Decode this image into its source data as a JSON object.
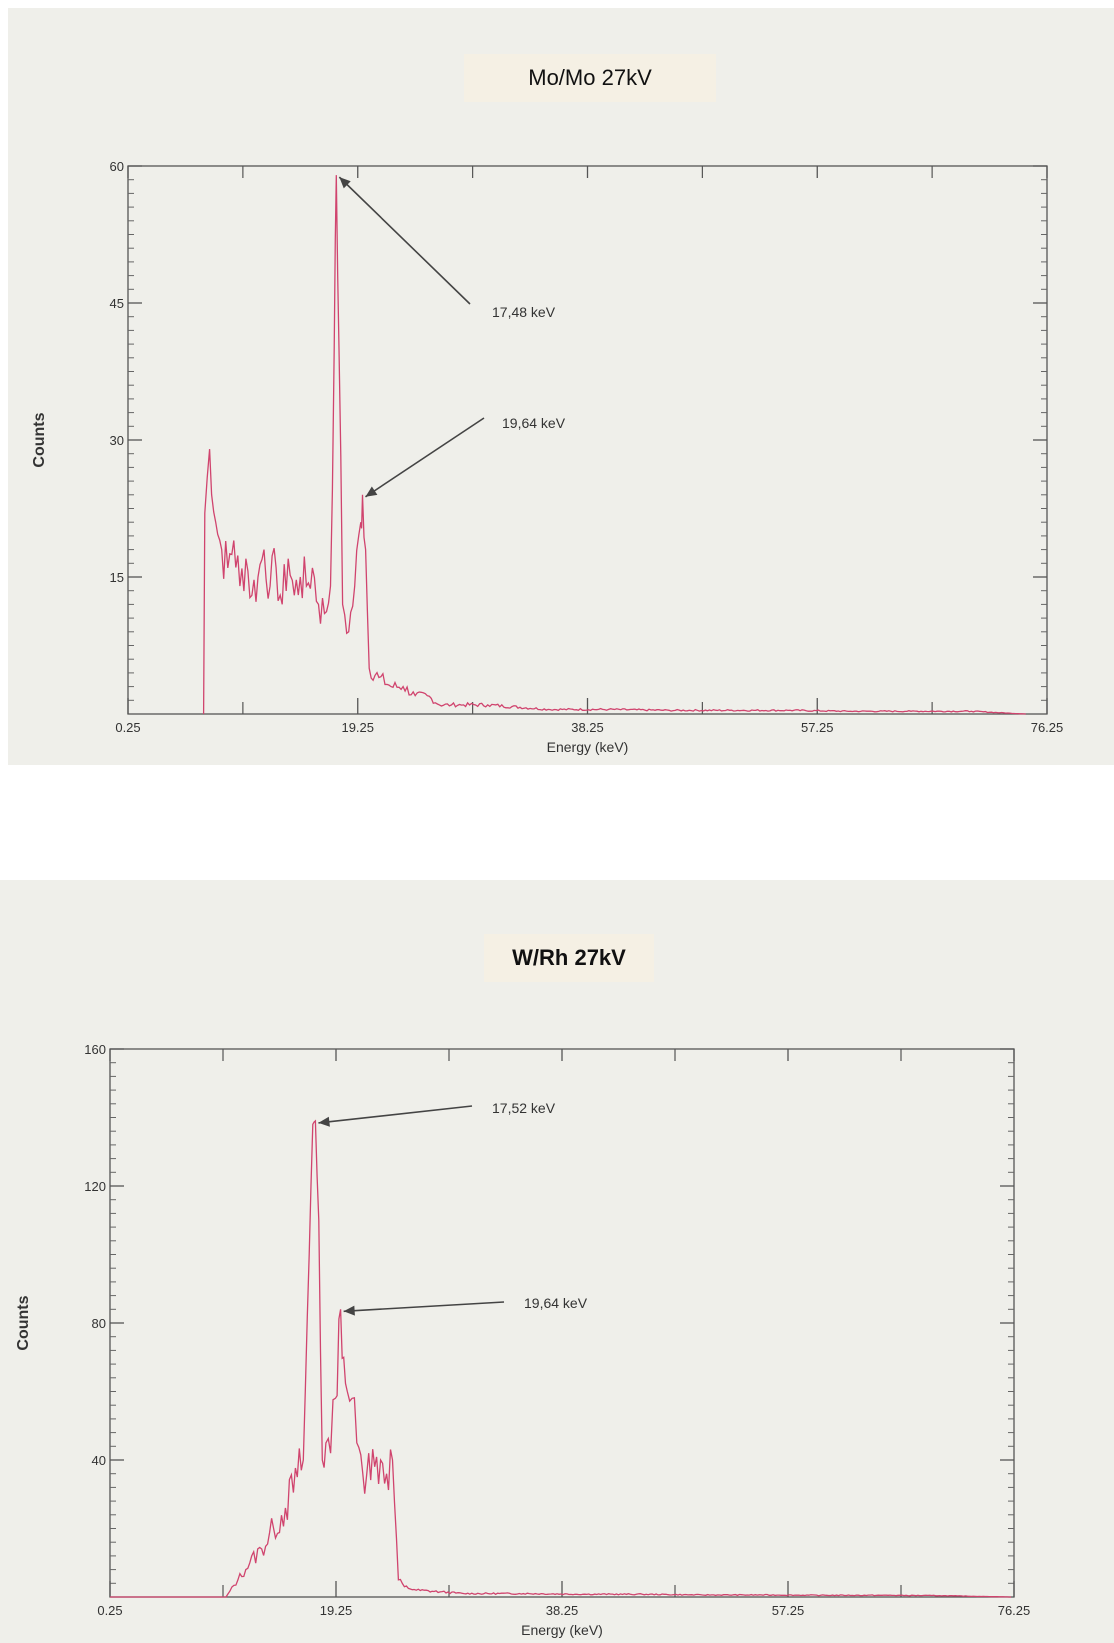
{
  "chart_data": [
    {
      "type": "line",
      "title": "Mo/Mo   27kV",
      "xlabel": "Energy (keV)",
      "ylabel": "Counts",
      "xlim": [
        0.25,
        76.25
      ],
      "ylim": [
        0,
        60
      ],
      "xticks": [
        0.25,
        19.25,
        38.25,
        57.25,
        76.25
      ],
      "xtick_labels": [
        "0.25",
        "19.25",
        "38.25",
        "57.25",
        "76.25"
      ],
      "yticks": [
        15,
        30,
        45,
        60
      ],
      "ytick_labels": [
        "15",
        "30",
        "45",
        "60"
      ],
      "grid": false,
      "line_color": "#d0446e",
      "series": [
        {
          "x": [
            6.5,
            6.6,
            7.0,
            7.5,
            8.0,
            8.5,
            9.0,
            9.5,
            10.0,
            10.5,
            11.0,
            11.5,
            12.0,
            12.5,
            13.0,
            13.5,
            14.0,
            14.5,
            15.0,
            15.5,
            16.0,
            16.5,
            17.0,
            17.3,
            17.48,
            17.7,
            18.0,
            18.5,
            19.0,
            19.5,
            19.64,
            19.9,
            20.2,
            21.0,
            22.0,
            23.0,
            24.0,
            25.0,
            26.0,
            27.0,
            28.0,
            30.0,
            35.0,
            40.0,
            45.0,
            50.0,
            55.0,
            60.0,
            65.0,
            70.0,
            74.5
          ],
          "y": [
            0,
            22,
            29,
            21,
            18,
            16,
            19,
            14,
            17,
            13,
            15,
            18,
            14,
            16,
            12,
            17,
            13,
            15,
            14,
            16,
            12,
            11,
            14,
            40,
            59,
            40,
            12,
            9,
            14,
            21,
            24,
            18,
            5,
            4,
            3,
            3,
            2,
            2,
            1,
            1,
            1,
            1,
            0.5,
            0.5,
            0.4,
            0.4,
            0.4,
            0.3,
            0.3,
            0.3,
            0
          ]
        }
      ],
      "annotations": [
        {
          "text": "17,48 keV",
          "x": 17.48,
          "y": 59
        },
        {
          "text": "19,64 keV",
          "x": 19.64,
          "y": 24
        }
      ]
    },
    {
      "type": "line",
      "title": "W/Rh 27kV",
      "xlabel": "Energy (keV)",
      "ylabel": "Counts",
      "xlim": [
        0.25,
        76.25
      ],
      "ylim": [
        0,
        160
      ],
      "xticks": [
        0.25,
        19.25,
        38.25,
        57.25,
        76.25
      ],
      "xtick_labels": [
        "0.25",
        "19.25",
        "38.25",
        "57.25",
        "76.25"
      ],
      "yticks": [
        40,
        80,
        120,
        160
      ],
      "ytick_labels": [
        "40",
        "80",
        "120",
        "160"
      ],
      "grid": false,
      "line_color": "#d0446e",
      "series": [
        {
          "x": [
            0.25,
            10.0,
            11.0,
            12.0,
            13.0,
            14.0,
            15.0,
            16.0,
            16.5,
            17.0,
            17.3,
            17.52,
            17.8,
            18.1,
            18.4,
            18.8,
            19.2,
            19.64,
            19.9,
            20.2,
            20.6,
            21.0,
            21.5,
            22.0,
            22.5,
            23.0,
            23.5,
            24.0,
            24.5,
            25.0,
            26.0,
            28.0,
            30.0,
            35.0,
            40.0,
            45.0,
            50.0,
            55.0,
            60.0,
            65.0,
            70.0,
            76.0
          ],
          "y": [
            0,
            0,
            5,
            10,
            14,
            20,
            26,
            35,
            40,
            100,
            138,
            139,
            110,
            40,
            45,
            42,
            58,
            84,
            70,
            60,
            58,
            45,
            36,
            42,
            38,
            40,
            36,
            40,
            5,
            3,
            2,
            1.5,
            1,
            1,
            0.8,
            0.8,
            0.6,
            0.6,
            0.5,
            0.5,
            0.4,
            0
          ]
        }
      ],
      "annotations": [
        {
          "text": "17,52 keV",
          "x": 17.52,
          "y": 139
        },
        {
          "text": "19,64 keV",
          "x": 19.64,
          "y": 84
        }
      ]
    }
  ]
}
